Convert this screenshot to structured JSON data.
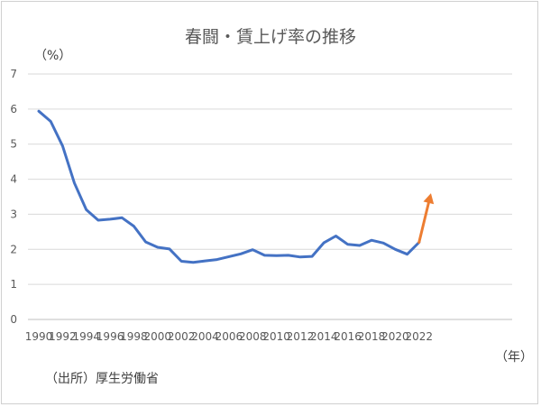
{
  "chart_data": {
    "type": "line",
    "title": "春闘・賃上げ率の推移",
    "y_unit_label": "（%）",
    "x_unit_label": "（年）",
    "source": "（出所）厚生労働省",
    "ylim": [
      0,
      7
    ],
    "y_ticks": [
      "0",
      "1",
      "2",
      "3",
      "4",
      "5",
      "6",
      "7"
    ],
    "x_tick_labels": [
      "1990",
      "1992",
      "1994",
      "1996",
      "1998",
      "2000",
      "2002",
      "2004",
      "2006",
      "2008",
      "2010",
      "2012",
      "2014",
      "2016",
      "2018",
      "2020",
      "2022"
    ],
    "grid": true,
    "line_color": "#4472C4",
    "arrow_color": "#ED7D31",
    "x": [
      1990,
      1991,
      1992,
      1993,
      1994,
      1995,
      1996,
      1997,
      1998,
      1999,
      2000,
      2001,
      2002,
      2003,
      2004,
      2005,
      2006,
      2007,
      2008,
      2009,
      2010,
      2011,
      2012,
      2013,
      2014,
      2015,
      2016,
      2017,
      2018,
      2019,
      2020,
      2021,
      2022
    ],
    "values": [
      5.94,
      5.65,
      4.95,
      3.89,
      3.13,
      2.83,
      2.86,
      2.9,
      2.66,
      2.21,
      2.06,
      2.01,
      1.66,
      1.63,
      1.67,
      1.71,
      1.79,
      1.87,
      1.99,
      1.83,
      1.82,
      1.83,
      1.78,
      1.8,
      2.19,
      2.38,
      2.14,
      2.11,
      2.26,
      2.18,
      2.0,
      1.86,
      2.2
    ],
    "arrow": {
      "from": [
        2022,
        2.2
      ],
      "to": [
        2023,
        3.6
      ]
    }
  }
}
